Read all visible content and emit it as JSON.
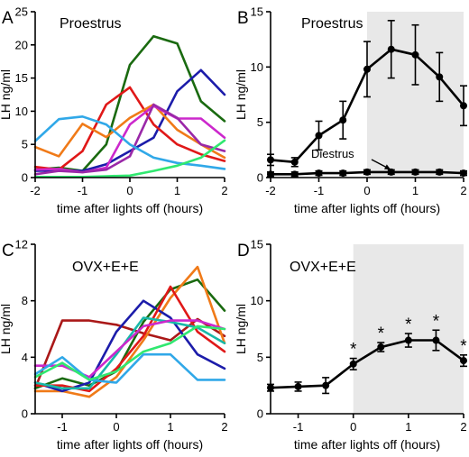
{
  "chart_data": [
    {
      "panel": "A",
      "type": "line",
      "title": "Proestrus",
      "xlabel": "time after lights off (hours)",
      "ylabel": "LH ng/ml",
      "xlim": [
        -2,
        2
      ],
      "ylim": [
        0,
        25
      ],
      "xticks": [
        -2,
        -1,
        0,
        1,
        2
      ],
      "yticks": [
        0,
        5,
        10,
        15,
        20,
        25
      ],
      "grid": false,
      "shaded": null,
      "x": [
        -2,
        -1.5,
        -1,
        -0.5,
        0,
        0.5,
        1,
        1.5,
        2
      ],
      "series": [
        {
          "color": "#1a6a10",
          "values": [
            1.2,
            1.5,
            1.0,
            5.0,
            17.0,
            21.3,
            20.2,
            11.5,
            8.5
          ]
        },
        {
          "color": "#1c1caa",
          "values": [
            1.0,
            1.1,
            1.0,
            2.0,
            4.0,
            6.0,
            13.0,
            16.2,
            12.5
          ]
        },
        {
          "color": "#e01818",
          "values": [
            1.6,
            1.2,
            4.0,
            11.0,
            13.6,
            8.0,
            5.0,
            3.5,
            2.5
          ]
        },
        {
          "color": "#f07a18",
          "values": [
            4.6,
            3.2,
            8.1,
            6.1,
            9.0,
            11.0,
            7.2,
            5.0,
            3.0
          ]
        },
        {
          "color": "#cc28cc",
          "values": [
            1.2,
            1.3,
            0.8,
            1.5,
            8.0,
            10.8,
            8.9,
            8.9,
            6.0
          ]
        },
        {
          "color": "#9a28a8",
          "values": [
            0.5,
            1.0,
            0.8,
            1.2,
            3.2,
            11.0,
            9.0,
            5.0,
            4.0
          ]
        },
        {
          "color": "#30a8e8",
          "values": [
            5.5,
            8.8,
            9.2,
            8.0,
            5.0,
            3.0,
            2.2,
            1.8,
            1.3
          ]
        },
        {
          "color": "#30e870",
          "values": [
            0.1,
            0.1,
            0.1,
            0.2,
            0.3,
            1.0,
            1.8,
            3.0,
            5.6
          ]
        }
      ]
    },
    {
      "panel": "B",
      "type": "line",
      "title": "Proestrus",
      "xlabel": "time after lights off (hours)",
      "ylabel": "LH ng/ml",
      "xlim": [
        -2,
        2
      ],
      "ylim": [
        0,
        15
      ],
      "xticks": [
        -2,
        -1,
        0,
        1,
        2
      ],
      "yticks": [
        0,
        5,
        10,
        15
      ],
      "grid": false,
      "shaded": [
        0,
        2
      ],
      "annotation": "Diestrus",
      "x": [
        -2,
        -1.5,
        -1,
        -0.5,
        0,
        0.5,
        1,
        1.5,
        2
      ],
      "series": [
        {
          "color": "#000000",
          "values": [
            1.6,
            1.4,
            3.8,
            5.2,
            9.8,
            11.6,
            11.1,
            9.1,
            6.5
          ],
          "err": [
            0.5,
            0.4,
            1.3,
            1.7,
            2.5,
            2.6,
            2.7,
            2.2,
            1.8
          ]
        },
        {
          "color": "#000000",
          "values": [
            0.3,
            0.3,
            0.4,
            0.4,
            0.5,
            0.5,
            0.5,
            0.5,
            0.4
          ],
          "err": [
            0.2,
            0.2,
            0.2,
            0.2,
            0.2,
            0.2,
            0.2,
            0.2,
            0.2
          ]
        }
      ]
    },
    {
      "panel": "C",
      "type": "line",
      "title": "OVX+E+E",
      "xlabel": "time after lights off (hours)",
      "ylabel": "LH ng/ml",
      "xlim": [
        -1.5,
        2
      ],
      "ylim": [
        0,
        12
      ],
      "xticks": [
        -1,
        0,
        1,
        2
      ],
      "yticks": [
        0,
        4,
        8,
        12
      ],
      "grid": false,
      "shaded": null,
      "x": [
        -1.5,
        -1,
        -0.5,
        0,
        0.5,
        1,
        1.5,
        2
      ],
      "series": [
        {
          "color": "#aa1818",
          "values": [
            1.8,
            6.6,
            6.6,
            6.3,
            5.7,
            5.2,
            6.7,
            5.5
          ]
        },
        {
          "color": "#1a6a10",
          "values": [
            1.8,
            2.5,
            2.0,
            3.0,
            6.5,
            8.8,
            9.5,
            7.3
          ]
        },
        {
          "color": "#f07a18",
          "values": [
            1.6,
            1.6,
            1.2,
            2.6,
            5.2,
            8.2,
            10.4,
            5.0
          ]
        },
        {
          "color": "#1c1caa",
          "values": [
            2.2,
            1.6,
            2.2,
            5.8,
            8.0,
            6.8,
            4.2,
            3.2
          ]
        },
        {
          "color": "#e01818",
          "values": [
            2.0,
            2.0,
            1.6,
            3.2,
            5.5,
            9.0,
            5.8,
            4.4
          ]
        },
        {
          "color": "#18b8a8",
          "values": [
            2.2,
            1.8,
            1.8,
            4.2,
            6.8,
            6.5,
            6.1,
            5.0
          ]
        },
        {
          "color": "#cc28cc",
          "values": [
            3.4,
            3.4,
            2.6,
            4.4,
            6.2,
            6.6,
            6.6,
            6.0
          ]
        },
        {
          "color": "#30a8e8",
          "values": [
            2.8,
            4.0,
            2.4,
            2.2,
            4.2,
            4.2,
            2.4,
            2.4
          ]
        },
        {
          "color": "#30e870",
          "values": [
            2.6,
            3.6,
            2.4,
            3.0,
            4.4,
            5.0,
            6.2,
            6.0
          ]
        }
      ]
    },
    {
      "panel": "D",
      "type": "line",
      "title": "OVX+E+E",
      "xlabel": "time after lights off (hours)",
      "ylabel": "LH ng/ml",
      "xlim": [
        -1.5,
        2
      ],
      "ylim": [
        0,
        15
      ],
      "xticks": [
        -1,
        0,
        1,
        2
      ],
      "yticks": [
        0,
        5,
        10,
        15
      ],
      "grid": false,
      "shaded": [
        0,
        2
      ],
      "x": [
        -1.5,
        -1,
        -0.5,
        0,
        0.5,
        1,
        1.5,
        2
      ],
      "series": [
        {
          "color": "#000000",
          "values": [
            2.3,
            2.4,
            2.5,
            4.4,
            5.9,
            6.5,
            6.5,
            4.7
          ],
          "err": [
            0.3,
            0.4,
            0.7,
            0.5,
            0.4,
            0.6,
            0.9,
            0.5
          ]
        }
      ],
      "markers": {
        "symbol": "*",
        "x": [
          0,
          0.5,
          1,
          1.5,
          2
        ]
      }
    }
  ]
}
